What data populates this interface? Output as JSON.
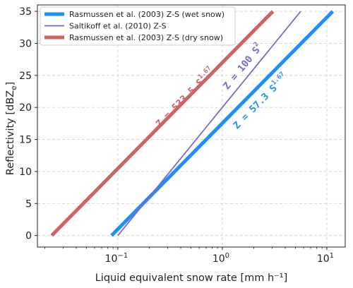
{
  "chart_data": {
    "type": "line",
    "xscale": "log",
    "xlabel": "Liquid equivalent snow rate [mm h⁻¹]",
    "ylabel": "Reflectivity [dBZ",
    "ylabel_sub": "e",
    "ylabel_end": "]",
    "xlim": [
      0.017,
      15
    ],
    "ylim": [
      -1.8,
      36
    ],
    "xticks": [
      {
        "value": 0.1,
        "base": "10",
        "exp": "−1"
      },
      {
        "value": 1,
        "base": "10",
        "exp": "0"
      },
      {
        "value": 10,
        "base": "10",
        "exp": "1"
      }
    ],
    "yticks": [
      0,
      5,
      10,
      15,
      20,
      25,
      30,
      35
    ],
    "grid": true,
    "legend_position": "top-left",
    "series": [
      {
        "name": "Rasmussen et al. (2003) Z-S (wet snow)",
        "color": "#1e8fff",
        "a": 57.3,
        "b": 1.67,
        "x": [
          0.0871,
          11.39
        ],
        "y": [
          0,
          35
        ],
        "label_main": "Z = 57.3 S",
        "label_exp": "1.67"
      },
      {
        "name": "Saltikoff et al. (2010) Z-S",
        "color": "#7b68c4",
        "a": 100,
        "b": 2,
        "x": [
          0.1,
          5.62
        ],
        "y": [
          0,
          35
        ],
        "label_main": "Z = 100 S",
        "label_exp": "2"
      },
      {
        "name": "Rasmussen et al. (2003) Z-S (dry snow)",
        "color": "#cd6464",
        "a": 533.5,
        "b": 1.67,
        "x": [
          0.0233,
          3.05
        ],
        "y": [
          0,
          35
        ],
        "label_main": "Z = 533.5 S",
        "label_exp": "1.67"
      }
    ]
  }
}
